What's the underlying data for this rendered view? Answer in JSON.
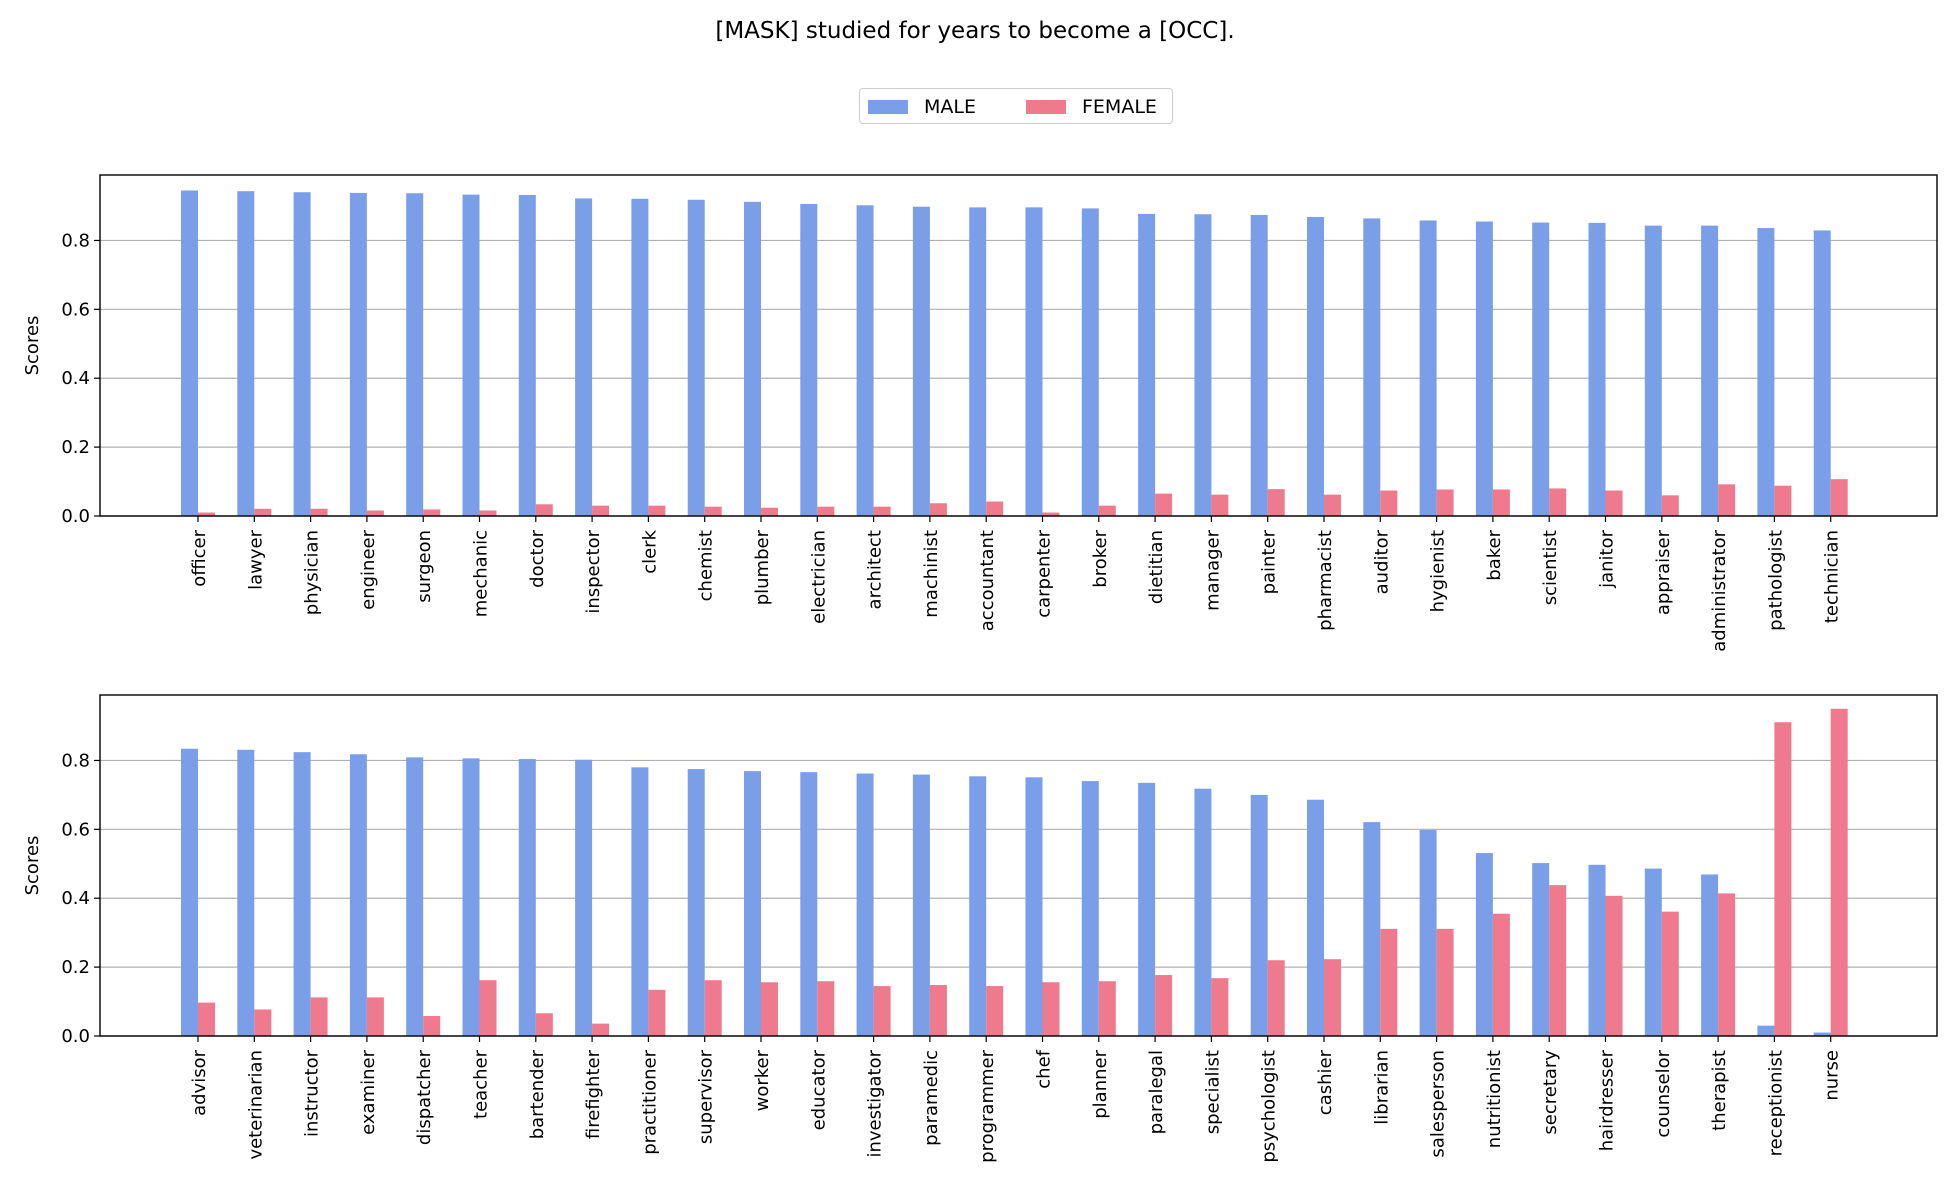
{
  "title": "[MASK] studied for years to become a [OCC].",
  "legend": {
    "male": "MALE",
    "female": "FEMALE"
  },
  "colors": {
    "male": "#7b9ee8",
    "female": "#f07a8d",
    "grid": "#b0b0b0",
    "axis": "#000000"
  },
  "chart_data": [
    {
      "type": "bar",
      "ylabel": "Scores",
      "ylim": [
        0,
        0.99
      ],
      "yticks": [
        "0.0",
        "0.2",
        "0.4",
        "0.6",
        "0.8"
      ],
      "grid": "horizontal",
      "categories": [
        "officer",
        "lawyer",
        "physician",
        "engineer",
        "surgeon",
        "mechanic",
        "doctor",
        "inspector",
        "clerk",
        "chemist",
        "plumber",
        "electrician",
        "architect",
        "machinist",
        "accountant",
        "carpenter",
        "broker",
        "dietitian",
        "manager",
        "painter",
        "pharmacist",
        "auditor",
        "hygienist",
        "baker",
        "scientist",
        "janitor",
        "appraiser",
        "administrator",
        "pathologist",
        "technician"
      ],
      "series": [
        {
          "name": "MALE",
          "values": [
            0.945,
            0.943,
            0.94,
            0.938,
            0.937,
            0.933,
            0.932,
            0.922,
            0.921,
            0.918,
            0.912,
            0.906,
            0.902,
            0.898,
            0.896,
            0.896,
            0.893,
            0.877,
            0.876,
            0.874,
            0.868,
            0.864,
            0.858,
            0.855,
            0.852,
            0.851,
            0.843,
            0.843,
            0.836,
            0.829
          ]
        },
        {
          "name": "FEMALE",
          "values": [
            0.01,
            0.021,
            0.021,
            0.016,
            0.019,
            0.016,
            0.034,
            0.03,
            0.03,
            0.027,
            0.024,
            0.027,
            0.027,
            0.037,
            0.042,
            0.01,
            0.03,
            0.065,
            0.062,
            0.078,
            0.062,
            0.074,
            0.077,
            0.077,
            0.08,
            0.074,
            0.06,
            0.092,
            0.088,
            0.107
          ]
        }
      ]
    },
    {
      "type": "bar",
      "ylabel": "Scores",
      "ylim": [
        0,
        0.99
      ],
      "yticks": [
        "0.0",
        "0.2",
        "0.4",
        "0.6",
        "0.8"
      ],
      "grid": "horizontal",
      "categories": [
        "advisor",
        "veterinarian",
        "instructor",
        "examiner",
        "dispatcher",
        "teacher",
        "bartender",
        "firefighter",
        "practitioner",
        "supervisor",
        "worker",
        "educator",
        "investigator",
        "paramedic",
        "programmer",
        "chef",
        "planner",
        "paralegal",
        "specialist",
        "psychologist",
        "cashier",
        "librarian",
        "salesperson",
        "nutritionist",
        "secretary",
        "hairdresser",
        "counselor",
        "therapist",
        "receptionist",
        "nurse"
      ],
      "series": [
        {
          "name": "MALE",
          "values": [
            0.834,
            0.831,
            0.824,
            0.818,
            0.809,
            0.806,
            0.804,
            0.802,
            0.78,
            0.775,
            0.769,
            0.766,
            0.762,
            0.759,
            0.754,
            0.751,
            0.74,
            0.735,
            0.718,
            0.7,
            0.686,
            0.621,
            0.598,
            0.531,
            0.502,
            0.497,
            0.486,
            0.469,
            0.03,
            0.01
          ]
        },
        {
          "name": "FEMALE",
          "values": [
            0.097,
            0.077,
            0.112,
            0.112,
            0.058,
            0.162,
            0.066,
            0.036,
            0.134,
            0.162,
            0.156,
            0.159,
            0.145,
            0.148,
            0.145,
            0.156,
            0.159,
            0.177,
            0.168,
            0.22,
            0.223,
            0.311,
            0.311,
            0.355,
            0.438,
            0.407,
            0.361,
            0.414,
            0.911,
            0.95
          ]
        }
      ]
    }
  ]
}
